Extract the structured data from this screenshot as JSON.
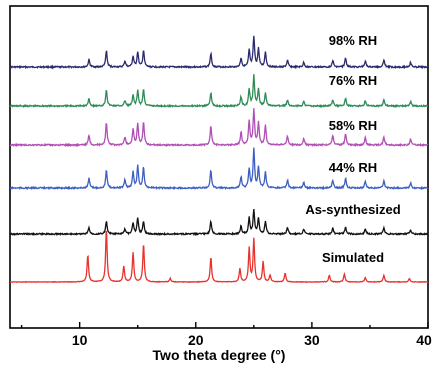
{
  "chart_data": {
    "type": "line",
    "title": "",
    "xlabel": "Two theta degree (°)",
    "ylabel": "",
    "xlim": [
      4,
      40
    ],
    "xticks": [
      10,
      20,
      30,
      40
    ],
    "y_ticks_shown": false,
    "grid": false,
    "legend": "none (series labeled above traces)",
    "series": [
      {
        "name": "98% RH",
        "color": "#2b2a6e",
        "peaks": [
          [
            10.8,
            0.25
          ],
          [
            12.3,
            0.55
          ],
          [
            13.9,
            0.2
          ],
          [
            14.6,
            0.35
          ],
          [
            15.0,
            0.5
          ],
          [
            15.5,
            0.55
          ],
          [
            21.3,
            0.45
          ],
          [
            23.9,
            0.3
          ],
          [
            24.6,
            0.55
          ],
          [
            25.0,
            1.0
          ],
          [
            25.4,
            0.6
          ],
          [
            26.0,
            0.5
          ],
          [
            27.9,
            0.22
          ],
          [
            29.3,
            0.15
          ],
          [
            31.8,
            0.22
          ],
          [
            32.9,
            0.3
          ],
          [
            34.6,
            0.2
          ],
          [
            36.2,
            0.25
          ],
          [
            38.5,
            0.15
          ]
        ]
      },
      {
        "name": "76% RH",
        "color": "#2e8b57",
        "peaks": [
          [
            10.8,
            0.25
          ],
          [
            12.3,
            0.55
          ],
          [
            13.9,
            0.18
          ],
          [
            14.6,
            0.35
          ],
          [
            15.0,
            0.5
          ],
          [
            15.5,
            0.55
          ],
          [
            21.3,
            0.45
          ],
          [
            23.9,
            0.3
          ],
          [
            24.6,
            0.55
          ],
          [
            25.0,
            1.0
          ],
          [
            25.4,
            0.55
          ],
          [
            26.0,
            0.45
          ],
          [
            27.9,
            0.2
          ],
          [
            29.3,
            0.15
          ],
          [
            31.8,
            0.2
          ],
          [
            32.9,
            0.25
          ],
          [
            34.6,
            0.18
          ],
          [
            36.2,
            0.22
          ],
          [
            38.5,
            0.15
          ]
        ]
      },
      {
        "name": "58% RH",
        "color": "#b04fb5",
        "peaks": [
          [
            10.8,
            0.3
          ],
          [
            12.3,
            0.7
          ],
          [
            13.9,
            0.25
          ],
          [
            14.6,
            0.5
          ],
          [
            15.0,
            0.65
          ],
          [
            15.5,
            0.7
          ],
          [
            21.3,
            0.6
          ],
          [
            23.9,
            0.4
          ],
          [
            24.6,
            0.75
          ],
          [
            25.0,
            1.1
          ],
          [
            25.4,
            0.7
          ],
          [
            26.0,
            0.6
          ],
          [
            27.9,
            0.28
          ],
          [
            29.3,
            0.2
          ],
          [
            31.8,
            0.3
          ],
          [
            32.9,
            0.35
          ],
          [
            34.6,
            0.22
          ],
          [
            36.2,
            0.25
          ],
          [
            38.5,
            0.18
          ]
        ]
      },
      {
        "name": "44% RH",
        "color": "#3c5fc2",
        "peaks": [
          [
            10.8,
            0.3
          ],
          [
            12.3,
            0.55
          ],
          [
            13.9,
            0.25
          ],
          [
            14.6,
            0.5
          ],
          [
            15.0,
            0.7
          ],
          [
            15.5,
            0.65
          ],
          [
            21.3,
            0.55
          ],
          [
            23.9,
            0.35
          ],
          [
            24.6,
            0.6
          ],
          [
            25.0,
            1.2
          ],
          [
            25.4,
            0.65
          ],
          [
            26.0,
            0.5
          ],
          [
            27.9,
            0.25
          ],
          [
            29.3,
            0.18
          ],
          [
            31.8,
            0.25
          ],
          [
            32.9,
            0.3
          ],
          [
            34.6,
            0.2
          ],
          [
            36.2,
            0.22
          ],
          [
            38.5,
            0.15
          ]
        ]
      },
      {
        "name": "As-synthesized",
        "color": "#111111",
        "peaks": [
          [
            10.8,
            0.2
          ],
          [
            12.3,
            0.4
          ],
          [
            13.9,
            0.15
          ],
          [
            14.6,
            0.35
          ],
          [
            15.0,
            0.5
          ],
          [
            15.5,
            0.4
          ],
          [
            21.3,
            0.4
          ],
          [
            23.9,
            0.25
          ],
          [
            24.6,
            0.5
          ],
          [
            25.0,
            0.75
          ],
          [
            25.4,
            0.5
          ],
          [
            26.0,
            0.4
          ],
          [
            27.9,
            0.2
          ],
          [
            29.3,
            0.15
          ],
          [
            31.8,
            0.18
          ],
          [
            32.9,
            0.22
          ],
          [
            34.6,
            0.15
          ],
          [
            36.2,
            0.18
          ],
          [
            38.5,
            0.12
          ]
        ]
      },
      {
        "name": "Simulated",
        "color": "#e8322c",
        "peaks": [
          [
            10.7,
            0.6
          ],
          [
            12.3,
            1.2
          ],
          [
            13.8,
            0.35
          ],
          [
            14.6,
            0.65
          ],
          [
            15.5,
            0.85
          ],
          [
            17.8,
            0.08
          ],
          [
            21.3,
            0.55
          ],
          [
            23.8,
            0.3
          ],
          [
            24.6,
            0.75
          ],
          [
            25.0,
            0.95
          ],
          [
            25.8,
            0.45
          ],
          [
            26.4,
            0.15
          ],
          [
            27.7,
            0.2
          ],
          [
            31.5,
            0.15
          ],
          [
            32.8,
            0.18
          ],
          [
            34.6,
            0.1
          ],
          [
            36.2,
            0.15
          ],
          [
            38.4,
            0.08
          ]
        ]
      }
    ]
  }
}
